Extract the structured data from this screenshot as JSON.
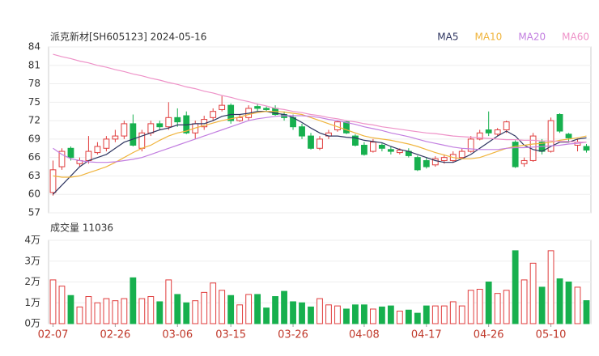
{
  "chart_data": {
    "type": "candlestick",
    "title": "派克新材[SH605123] 2024-05-16",
    "categories": [
      "02-07",
      null,
      null,
      null,
      null,
      null,
      null,
      "02-26",
      null,
      null,
      null,
      null,
      null,
      null,
      "03-06",
      null,
      null,
      null,
      null,
      null,
      "03-15",
      null,
      null,
      null,
      null,
      null,
      null,
      "03-26",
      null,
      null,
      null,
      null,
      null,
      null,
      null,
      "04-08",
      null,
      null,
      null,
      null,
      null,
      null,
      "04-17",
      null,
      null,
      null,
      null,
      null,
      null,
      "04-26",
      null,
      null,
      null,
      null,
      null,
      null,
      "05-10",
      null,
      null,
      null,
      null
    ],
    "open": [
      60.3,
      64.5,
      67.5,
      65,
      65.5,
      66.8,
      67.5,
      69,
      69.5,
      71.5,
      67.5,
      70,
      71.5,
      71,
      72.5,
      72.8,
      70,
      71,
      72.5,
      73.8,
      74.5,
      72,
      72.5,
      74.3,
      74,
      74,
      73,
      72.5,
      71,
      69.5,
      67.5,
      69.5,
      70.5,
      71.8,
      69.5,
      68,
      67,
      68,
      67.3,
      66.8,
      67,
      66,
      65.5,
      64.8,
      65.5,
      65.5,
      66,
      67,
      69,
      70.5,
      69.8,
      70.5,
      68.5,
      65,
      65.5,
      68.5,
      67,
      73,
      69.8,
      68,
      67.8
    ],
    "close": [
      64,
      67,
      66,
      65.5,
      67,
      67.8,
      69,
      69.5,
      71.5,
      68,
      70,
      71.5,
      71,
      72.5,
      71.8,
      70,
      71.5,
      72.2,
      73.5,
      74.5,
      72,
      72.5,
      74,
      74,
      73.8,
      73,
      72.5,
      71,
      69.5,
      67.5,
      69,
      70,
      71.8,
      70,
      68,
      66.5,
      68.5,
      67.5,
      67,
      67.2,
      66.3,
      64,
      64.5,
      65.8,
      66,
      66.5,
      67,
      69,
      70,
      70,
      70.5,
      71.8,
      64.5,
      65.5,
      69.5,
      67,
      72,
      70.3,
      69.2,
      68.5,
      67.2
    ],
    "high": [
      65.5,
      67.5,
      67.8,
      66,
      69.5,
      68.5,
      69.5,
      70.5,
      72,
      73,
      70.5,
      72,
      72,
      75,
      74,
      73.5,
      72,
      72.8,
      74,
      76,
      74.8,
      73,
      74.5,
      74.8,
      74.3,
      74.5,
      73.5,
      73,
      71.5,
      70,
      69.5,
      70.5,
      72,
      72,
      69.8,
      68.5,
      69,
      68.3,
      67.8,
      67.5,
      67.5,
      66.3,
      66,
      66.2,
      66.5,
      67,
      67.5,
      69.5,
      70.5,
      73.5,
      70.8,
      72,
      68.8,
      66,
      70,
      69,
      72.5,
      73.2,
      70,
      69,
      68.2
    ],
    "low": [
      59.8,
      64,
      65.5,
      64.5,
      65,
      66.5,
      67,
      68.5,
      69,
      67.8,
      67,
      69.5,
      70.5,
      70.5,
      71,
      69.8,
      69,
      70.5,
      72,
      73.5,
      71.5,
      71.8,
      72,
      73.5,
      73.5,
      72.8,
      72,
      70.5,
      69,
      67.3,
      67.2,
      69,
      70.2,
      69.8,
      67.8,
      66.3,
      66.8,
      67,
      66.5,
      66.5,
      66,
      63.8,
      64.2,
      64.5,
      65,
      65.2,
      65.8,
      66.8,
      68.8,
      69.5,
      69.5,
      70,
      64.3,
      64.5,
      65.3,
      66.5,
      66.8,
      70,
      68.5,
      67,
      66.8
    ],
    "ylim": [
      57,
      84
    ],
    "yticks": [
      57,
      60,
      63,
      66,
      69,
      72,
      75,
      78,
      81,
      84
    ],
    "grid": true,
    "up_color": "#e03c3c",
    "down_color": "#17b04e",
    "ma_series": [
      {
        "name": "MA5",
        "color": "#2e3560",
        "values": [
          60,
          61.5,
          63,
          64.5,
          65.5,
          66,
          66.5,
          67.5,
          68.5,
          69,
          69.5,
          70,
          70.5,
          70.8,
          71.3,
          71.3,
          71.5,
          71.5,
          72,
          72.7,
          73,
          73,
          73.2,
          73.5,
          73.5,
          73.2,
          73,
          72.5,
          71.7,
          70.8,
          70,
          69.5,
          69.5,
          69.3,
          69.2,
          68.8,
          68.6,
          68.4,
          67.8,
          67.3,
          67,
          66.5,
          66,
          65.5,
          65.2,
          65.2,
          65.8,
          66.5,
          67.5,
          68.5,
          69.5,
          70.3,
          69.5,
          68,
          67.3,
          67,
          67.8,
          68.5,
          68.5,
          69,
          69.2
        ]
      },
      {
        "name": "MA10",
        "color": "#f0b43c",
        "values": [
          63,
          62.8,
          62.8,
          63,
          63.5,
          64,
          64.5,
          65.2,
          66,
          66.8,
          67.5,
          68,
          68.8,
          69.5,
          70,
          70.3,
          70.8,
          71.2,
          71.6,
          72,
          72.3,
          72.6,
          73,
          73.3,
          73.5,
          73.5,
          73.4,
          73.2,
          73,
          72.5,
          72,
          71.5,
          71,
          70.5,
          70,
          69.5,
          69.2,
          69,
          68.8,
          68.5,
          68.2,
          67.8,
          67.3,
          66.8,
          66.4,
          66,
          65.8,
          65.8,
          66,
          66.5,
          67,
          67.5,
          67.8,
          68,
          68.2,
          68.3,
          68.5,
          68.8,
          69,
          69.2,
          69.5
        ]
      },
      {
        "name": "MA20",
        "color": "#c27ee0",
        "values": [
          67.5,
          66.5,
          65.8,
          65.5,
          65.3,
          65.2,
          65.2,
          65.3,
          65.5,
          65.7,
          66,
          66.5,
          67,
          67.5,
          68,
          68.5,
          69,
          69.5,
          70,
          70.5,
          71,
          71.5,
          72,
          72.3,
          72.5,
          72.7,
          72.8,
          72.8,
          72.8,
          72.7,
          72.5,
          72.2,
          72,
          71.7,
          71.4,
          71,
          70.7,
          70.4,
          70,
          69.7,
          69.4,
          69,
          68.6,
          68.3,
          68,
          67.7,
          67.5,
          67.4,
          67.3,
          67.3,
          67.3,
          67.5,
          67.6,
          67.6,
          67.7,
          67.8,
          67.9,
          68,
          68.2,
          68.3,
          68.5
        ]
      },
      {
        "name": "MA60",
        "color": "#ee92c8",
        "values": [
          82.8,
          82.4,
          82.1,
          81.7,
          81.4,
          81,
          80.7,
          80.3,
          80,
          79.6,
          79.3,
          78.9,
          78.6,
          78.2,
          77.9,
          77.5,
          77.2,
          76.8,
          76.5,
          76.1,
          75.8,
          75.4,
          75.1,
          74.7,
          74.4,
          74,
          73.8,
          73.5,
          73.3,
          73,
          72.8,
          72.5,
          72.3,
          72,
          71.8,
          71.5,
          71.3,
          71,
          70.8,
          70.6,
          70.4,
          70.2,
          70,
          69.9,
          69.7,
          69.5,
          69.4,
          69.3,
          69.2,
          69.1,
          69,
          68.9,
          68.9,
          68.8,
          68.8,
          68.7,
          68.7,
          68.6,
          68.6,
          68.5,
          68.5
        ]
      }
    ],
    "volume": {
      "label": "成交量 11036",
      "values": [
        2.1,
        1.8,
        1.35,
        0.8,
        1.3,
        1.0,
        1.2,
        1.1,
        1.2,
        2.2,
        1.2,
        1.3,
        1.05,
        2.1,
        1.4,
        1.0,
        1.1,
        1.5,
        1.95,
        1.6,
        1.35,
        0.9,
        1.4,
        1.4,
        0.75,
        1.3,
        1.55,
        1.05,
        1.0,
        0.8,
        1.2,
        0.9,
        0.85,
        0.7,
        0.9,
        0.9,
        0.7,
        0.8,
        0.85,
        0.6,
        0.65,
        0.5,
        0.85,
        0.85,
        0.85,
        1.05,
        0.85,
        1.6,
        1.65,
        2.0,
        1.45,
        1.6,
        3.5,
        2.1,
        2.9,
        1.75,
        3.5,
        2.15,
        2.0,
        1.75,
        1.1036
      ],
      "ylim": [
        0,
        4
      ],
      "yticks": [
        {
          "value": 0,
          "label": "0万"
        },
        {
          "value": 1,
          "label": "1万"
        },
        {
          "value": 2,
          "label": "2万"
        },
        {
          "value": 3,
          "label": "3万"
        },
        {
          "value": 4,
          "label": "4万"
        }
      ]
    }
  }
}
